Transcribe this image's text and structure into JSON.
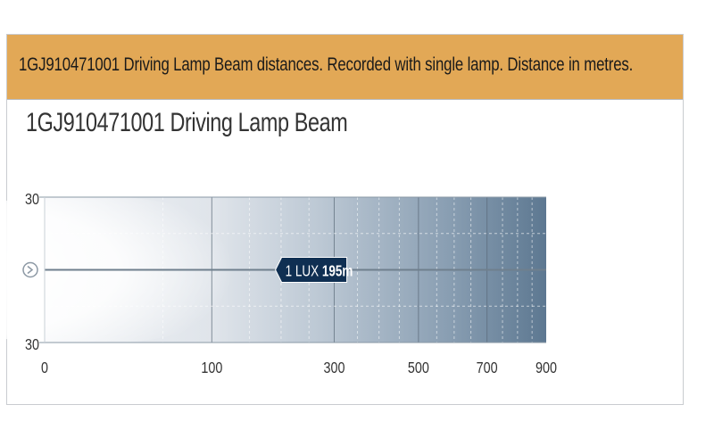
{
  "header": {
    "title": "1GJ910471001 Driving Lamp Beam distances. Recorded with single lamp. Distance in metres."
  },
  "chart_data": {
    "type": "area",
    "title": "1GJ910471001 Driving Lamp Beam",
    "x_ticks": [
      {
        "value": 0,
        "label": "0"
      },
      {
        "value": 100,
        "label": "100"
      },
      {
        "value": 300,
        "label": "300"
      },
      {
        "value": 500,
        "label": "500"
      },
      {
        "value": 700,
        "label": "700"
      },
      {
        "value": 900,
        "label": "900"
      }
    ],
    "y_ticks": [
      {
        "value": 30,
        "label": "30"
      },
      {
        "value": -30,
        "label": "30"
      }
    ],
    "xlim": [
      0,
      900
    ],
    "ylim": [
      -30,
      30
    ],
    "x_scale": "sqrt",
    "beam_markers": [
      {
        "label": "1 LUX",
        "distance": 195,
        "value_label": "195m"
      }
    ],
    "colors": {
      "accent": "#e2a856",
      "marker": "#0f2f52",
      "beam_far": "#5d7891"
    }
  }
}
